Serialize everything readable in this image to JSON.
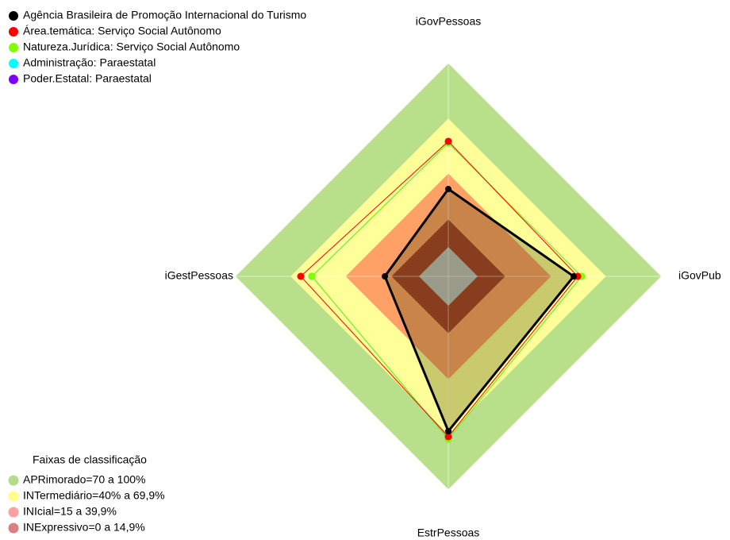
{
  "chart_data": {
    "type": "radar",
    "axes": [
      "iGovPessoas",
      "iGovPub",
      "EstrPessoas",
      "iGestPessoas"
    ],
    "rlim": [
      -16,
      100
    ],
    "series": [
      {
        "name": "Agência Brasileira de Promoção Internacional  do Turismo",
        "color": "#000000",
        "values": [
          31.6,
          52.4,
          68.4,
          18.6
        ]
      },
      {
        "name": "Área.temática: Serviço Social Autônomo",
        "color": "#ff0000",
        "values": [
          57.6,
          54.6,
          71.4,
          64.5
        ]
      },
      {
        "name": "Natureza.Jurídica: Serviço Social Autônomo",
        "color": "#80ff00",
        "values": [
          56.7,
          56.7,
          72.7,
          58.4
        ]
      },
      {
        "name": "Administração: Paraestatal",
        "color": "#00ffff",
        "values": [
          56.7,
          56.7,
          72.7,
          58.4
        ]
      },
      {
        "name": "Poder.Estatal: Paraestatal",
        "color": "#8000ff",
        "values": [
          56.7,
          56.7,
          72.7,
          58.4
        ]
      }
    ],
    "bands_title": "Faixas de classificação",
    "bands": [
      {
        "label": "APRimorado=70 a 100%",
        "from": 70,
        "to": 100,
        "color": "#b8e08a",
        "legend_color": "#b5dc8c"
      },
      {
        "label": "INTermediário=40% a 69,9%",
        "from": 40,
        "to": 70,
        "color": "#ffff99",
        "legend_color": "#ffff8c"
      },
      {
        "label": "INIcial=15 a 39,9%",
        "from": 15,
        "to": 40,
        "color": "#ffa066",
        "legend_color": "#ff9f9f"
      },
      {
        "label": "INExpressivo=0 a 14,9%",
        "from": 0,
        "to": 15,
        "color": "#a63d2a",
        "legend_color": "#d98080"
      }
    ]
  }
}
